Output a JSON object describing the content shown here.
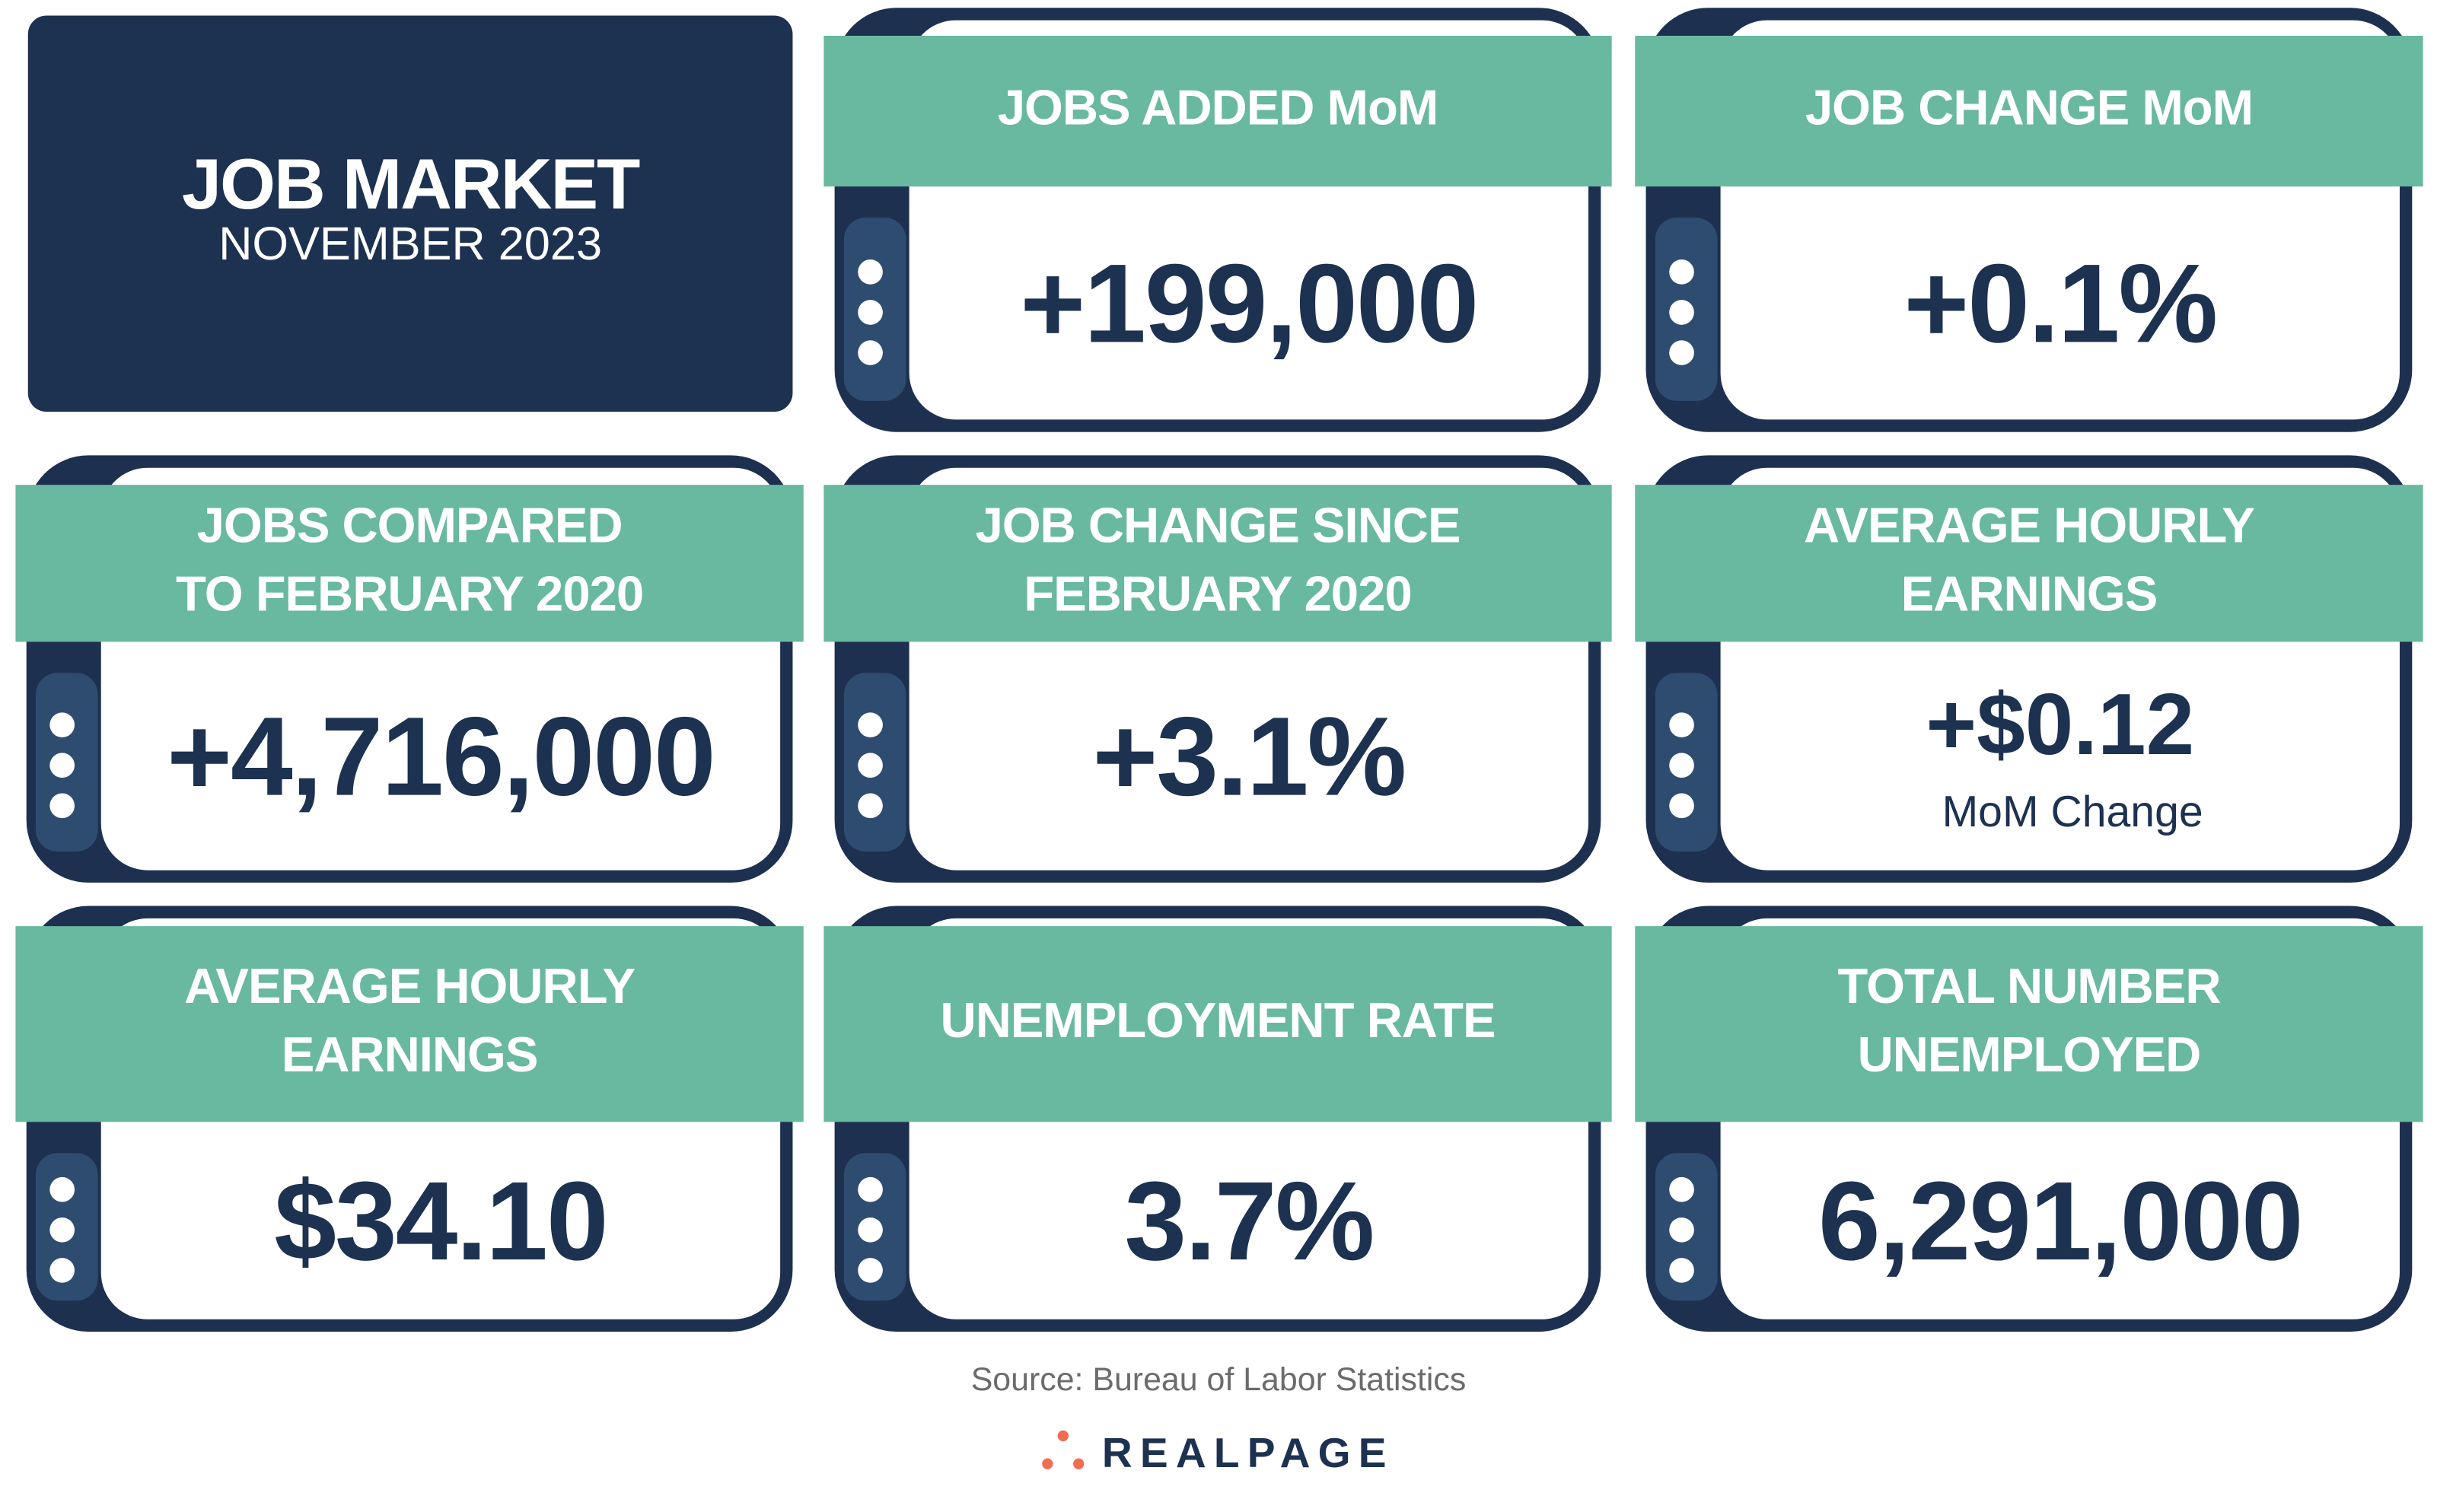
{
  "title": "JOB MARKET",
  "subtitle": "NOVEMBER 2023",
  "cards": [
    {
      "header": [
        "JOBS ADDED MoM"
      ],
      "value": "+199,000"
    },
    {
      "header": [
        "JOB CHANGE MoM"
      ],
      "value": "+0.1%"
    },
    {
      "header": [
        "JOBS COMPARED",
        "TO FEBRUARY 2020"
      ],
      "value": "+4,716,000"
    },
    {
      "header": [
        "JOB CHANGE SINCE",
        "FEBRUARY 2020"
      ],
      "value": "+3.1%"
    },
    {
      "header": [
        "AVERAGE HOURLY",
        "EARNINGS"
      ],
      "value": "+$0.12",
      "note": "MoM Change"
    },
    {
      "header": [
        "AVERAGE HOURLY",
        "EARNINGS"
      ],
      "value": "$34.10"
    },
    {
      "header": [
        "UNEMPLOYMENT RATE"
      ],
      "value": "3.7%"
    },
    {
      "header": [
        "TOTAL NUMBER",
        "UNEMPLOYED"
      ],
      "value": "6,291,000"
    }
  ],
  "source": "Source: Bureau of Labor Statistics",
  "logo": "REALPAGE"
}
